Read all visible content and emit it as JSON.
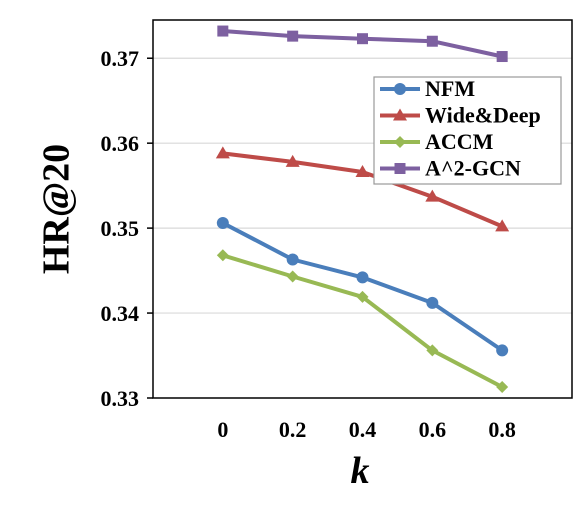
{
  "chart_data": {
    "type": "line",
    "title": "",
    "xlabel": "k",
    "ylabel": "HR@20",
    "x": [
      0,
      0.2,
      0.4,
      0.6,
      0.8
    ],
    "x_tick_labels": [
      "0",
      "0.2",
      "0.4",
      "0.6",
      "0.8"
    ],
    "y_tick_labels": [
      "0.33",
      "0.34",
      "0.35",
      "0.36",
      "0.37"
    ],
    "y_ticks": [
      0.33,
      0.34,
      0.35,
      0.36,
      0.37
    ],
    "ylim": [
      0.33,
      0.3745
    ],
    "xlim": [
      -0.2,
      1.0
    ],
    "grid": "horizontal",
    "legend": "top-right",
    "series": [
      {
        "name": "NFM",
        "color": "#4a7ebb",
        "marker": "circle",
        "values": [
          0.3506,
          0.3463,
          0.3442,
          0.3412,
          0.3356
        ]
      },
      {
        "name": "Wide&Deep",
        "color": "#be4b48",
        "marker": "triangle",
        "values": [
          0.3588,
          0.3578,
          0.3566,
          0.3537,
          0.3502
        ]
      },
      {
        "name": "ACCM",
        "color": "#98b954",
        "marker": "diamond",
        "values": [
          0.3468,
          0.3443,
          0.3419,
          0.3356,
          0.3313
        ]
      },
      {
        "name": "A^2-GCN",
        "color": "#7d60a0",
        "marker": "square",
        "values": [
          0.3732,
          0.3726,
          0.3723,
          0.372,
          0.3702
        ]
      }
    ]
  }
}
